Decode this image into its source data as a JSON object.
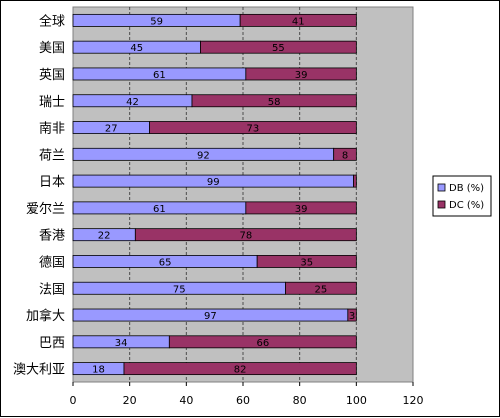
{
  "chart_data": {
    "type": "bar",
    "orientation": "horizontal",
    "stacked": true,
    "categories": [
      "全球",
      "美国",
      "英国",
      "瑞士",
      "南非",
      "荷兰",
      "日本",
      "爱尔兰",
      "香港",
      "德国",
      "法国",
      "加拿大",
      "巴西",
      "澳大利亚"
    ],
    "series": [
      {
        "name": "DB (%)",
        "color": "#9999ff",
        "values": [
          59,
          45,
          61,
          42,
          27,
          92,
          99,
          61,
          22,
          65,
          75,
          97,
          34,
          18
        ]
      },
      {
        "name": "DC (%)",
        "color": "#993366",
        "values": [
          41,
          55,
          39,
          58,
          73,
          8,
          1,
          39,
          78,
          35,
          25,
          3,
          66,
          82
        ]
      }
    ],
    "data_labels": {
      "DB (%)": [
        "59",
        "45",
        "61",
        "42",
        "27",
        "92",
        "99",
        "61",
        "22",
        "65",
        "75",
        "97",
        "34",
        "18"
      ],
      "DC (%)": [
        "41",
        "55",
        "39",
        "58",
        "73",
        "8",
        "",
        "39",
        "78",
        "35",
        "25",
        "3",
        "66",
        "82"
      ]
    },
    "xlim": [
      0,
      120
    ],
    "xticks": [
      "0",
      "20",
      "40",
      "60",
      "80",
      "100",
      "120"
    ],
    "plot_background": "#c0c0c0",
    "grid": true,
    "legend_position": "right",
    "title": "",
    "xlabel": "",
    "ylabel": ""
  }
}
